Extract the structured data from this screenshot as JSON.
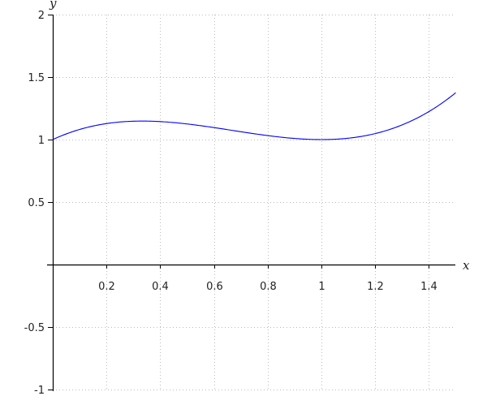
{
  "chart_data": {
    "type": "line",
    "title": "",
    "xlabel": "x",
    "ylabel": "y",
    "xlim": [
      0,
      1.5
    ],
    "ylim": [
      -1,
      2
    ],
    "grid": true,
    "grid_style": "dotted",
    "x_ticks": [
      0.2,
      0.4,
      0.6,
      0.8,
      1,
      1.2,
      1.4
    ],
    "x_tick_labels": [
      "0.2",
      "0.4",
      "0.6",
      "0.8",
      "1",
      "1.2",
      "1.4"
    ],
    "y_ticks": [
      -1,
      -0.5,
      0.5,
      1,
      1.5,
      2
    ],
    "y_tick_labels": [
      "-1",
      "-0.5",
      "0.5",
      "1",
      "1.5",
      "2"
    ],
    "series": [
      {
        "color": "#0000ff",
        "x": [
          0,
          0.1,
          0.2,
          0.3,
          0.333,
          0.4,
          0.5,
          0.6,
          0.7,
          0.8,
          0.9,
          1.0,
          1.1,
          1.2,
          1.3,
          1.4,
          1.5
        ],
        "y": [
          1,
          1.081,
          1.128,
          1.147,
          1.148,
          1.144,
          1.125,
          1.096,
          1.063,
          1.032,
          1.009,
          1.0,
          1.011,
          1.048,
          1.117,
          1.224,
          1.375
        ]
      }
    ]
  }
}
